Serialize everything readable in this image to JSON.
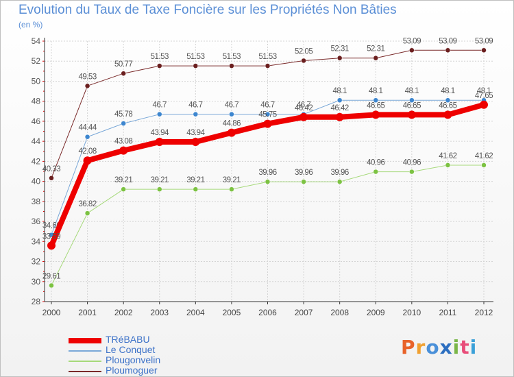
{
  "header": {
    "title": "Evolution du Taux de Taxe Foncière sur les Propriétés Non Bâties",
    "unit": "(en %)"
  },
  "brand": {
    "text": "Proxiti",
    "colors": [
      "#e8632a",
      "#f0a030",
      "#4a90d9",
      "#2d6fc0",
      "#7ab648",
      "#e84d7a",
      "#3aa0d8"
    ]
  },
  "chart_data": {
    "type": "line",
    "title": "Evolution du Taux de Taxe Foncière sur les Propriétés Non Bâties",
    "ylabel": "(en %)",
    "xlabel": "",
    "ylim": [
      28,
      54
    ],
    "yticks": [
      28,
      30,
      32,
      34,
      36,
      38,
      40,
      42,
      44,
      46,
      48,
      50,
      52,
      54
    ],
    "grid": true,
    "legend_position": "bottom-left",
    "x": [
      "2000",
      "2001",
      "2002",
      "2003",
      "2004",
      "2005",
      "2006",
      "2007",
      "2008",
      "2009",
      "2010",
      "2011",
      "2012"
    ],
    "series": [
      {
        "name": "Ploumoguer",
        "color": "#7a2a2a",
        "marker": "#6b1f1f",
        "width": 1,
        "values": [
          40.33,
          49.53,
          50.77,
          51.53,
          51.53,
          51.53,
          51.53,
          52.05,
          52.31,
          52.31,
          53.09,
          53.09,
          53.09
        ],
        "labels": [
          "40.33",
          "49.53",
          "50.77",
          "51.53",
          "51.53",
          "51.53",
          "51.53",
          "52.05",
          "52.31",
          "52.31",
          "53.09",
          "53.09",
          "53.09"
        ]
      },
      {
        "name": "Plougonvelin",
        "color": "#a6d97a",
        "marker": "#7cc242",
        "width": 1,
        "values": [
          29.61,
          36.82,
          39.21,
          39.21,
          39.21,
          39.21,
          39.96,
          39.96,
          39.96,
          40.96,
          40.96,
          41.62,
          41.62
        ],
        "labels": [
          "29.61",
          "36.82",
          "39.21",
          "39.21",
          "39.21",
          "39.21",
          "39.96",
          "39.96",
          "39.96",
          "40.96",
          "40.96",
          "41.62",
          "41.62"
        ]
      },
      {
        "name": "Le Conquet",
        "color": "#7aa8d8",
        "marker": "#3d86cf",
        "width": 1,
        "values": [
          34.66,
          44.44,
          45.78,
          46.7,
          46.7,
          46.7,
          46.7,
          46.7,
          48.1,
          48.1,
          48.1,
          48.1,
          48.1
        ],
        "labels": [
          "34.66",
          "44.44",
          "45.78",
          "46.7",
          "46.7",
          "46.7",
          "46.7",
          "46.7",
          "48.1",
          "48.1",
          "48.1",
          "48.1",
          "48.1"
        ]
      },
      {
        "name": "TRéBABU",
        "color": "#ee0000",
        "marker": "#ee0000",
        "width": 8,
        "values": [
          33.59,
          42.08,
          43.08,
          43.94,
          43.94,
          44.86,
          45.75,
          46.42,
          46.42,
          46.65,
          46.65,
          46.65,
          47.65
        ],
        "labels": [
          "33.59",
          "42.08",
          "43.08",
          "43.94",
          "43.94",
          "44.86",
          "45.75",
          "46.42",
          "46.42",
          "46.65",
          "46.65",
          "46.65",
          "47.65"
        ]
      }
    ],
    "legend_order": [
      "TRéBABU",
      "Le Conquet",
      "Plougonvelin",
      "Ploumoguer"
    ]
  }
}
